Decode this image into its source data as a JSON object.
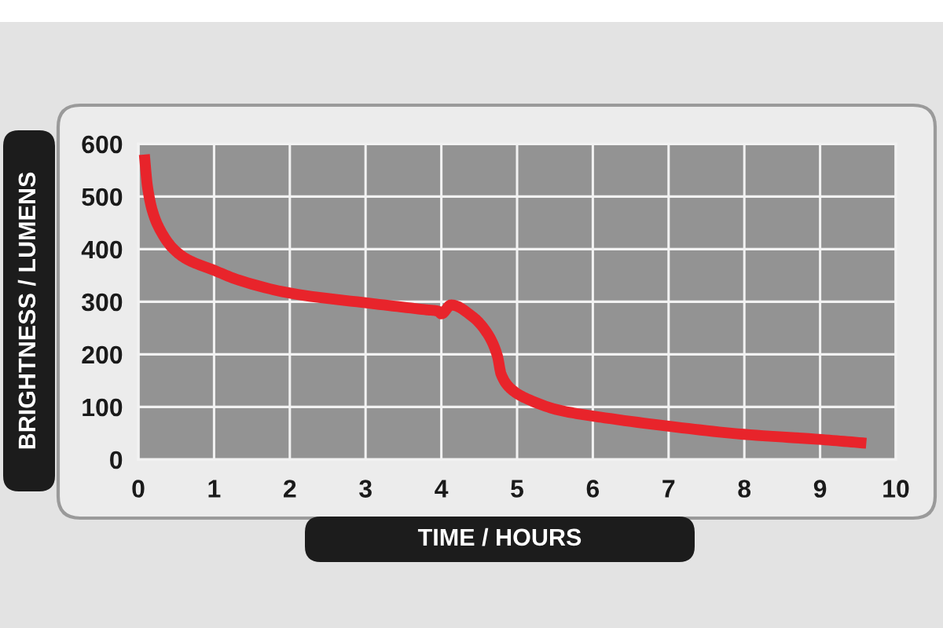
{
  "chart_data": {
    "type": "line",
    "xlabel": "TIME / HOURS",
    "ylabel": "BRIGHTNESS / LUMENS",
    "x": [
      0.08,
      0.12,
      0.19,
      0.29,
      0.46,
      0.64,
      0.98,
      1.33,
      2.02,
      3.06,
      3.78,
      3.96,
      4.0,
      4.13,
      4.41,
      4.62,
      4.74,
      4.79,
      4.93,
      5.17,
      5.58,
      5.99,
      7.02,
      7.99,
      9.02,
      9.61
    ],
    "series": [
      {
        "color": "#e8242b",
        "values": [
          580,
          520,
          471,
          436,
          401,
          381,
          361,
          341,
          316,
          297,
          285,
          282,
          277,
          294,
          272,
          237,
          197,
          162,
          133,
          113,
          93,
          83,
          63,
          48,
          38,
          31
        ]
      }
    ],
    "xlim": [
      0,
      10
    ],
    "ylim": [
      0,
      600
    ],
    "xticks": [
      0,
      1,
      2,
      3,
      4,
      5,
      6,
      7,
      8,
      9,
      10
    ],
    "yticks": [
      0,
      100,
      200,
      300,
      400,
      500,
      600
    ],
    "grid": true,
    "line_style": "solid"
  }
}
